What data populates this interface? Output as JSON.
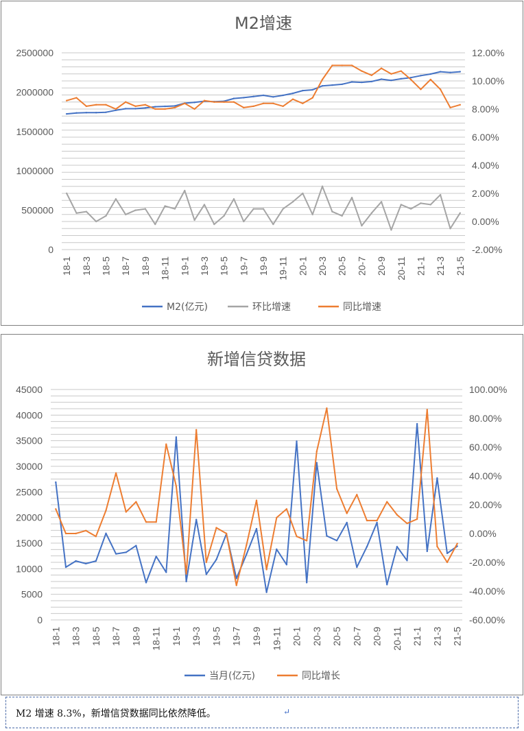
{
  "chart_data": [
    {
      "type": "line",
      "title": "M2增速",
      "categories": [
        "18-1",
        "18-2",
        "18-3",
        "18-4",
        "18-5",
        "18-6",
        "18-7",
        "18-8",
        "18-9",
        "18-10",
        "18-11",
        "18-12",
        "19-1",
        "19-2",
        "19-3",
        "19-4",
        "19-5",
        "19-6",
        "19-7",
        "19-8",
        "19-9",
        "19-10",
        "19-11",
        "19-12",
        "20-1",
        "20-2",
        "20-3",
        "20-4",
        "20-5",
        "20-6",
        "20-7",
        "20-8",
        "20-9",
        "20-10",
        "20-11",
        "20-12",
        "21-1",
        "21-2",
        "21-3",
        "21-4",
        "21-5"
      ],
      "x_tick_labels": [
        "18-1",
        "18-3",
        "18-5",
        "18-7",
        "18-9",
        "18-11",
        "19-1",
        "19-3",
        "19-5",
        "19-7",
        "19-9",
        "19-11",
        "20-1",
        "20-3",
        "20-5",
        "20-7",
        "20-9",
        "20-11",
        "21-1",
        "21-3",
        "21-5"
      ],
      "y_left": {
        "ylim": [
          0,
          2500000
        ],
        "ticks": [
          "0",
          "500000",
          "1000000",
          "1500000",
          "2000000",
          "2500000"
        ]
      },
      "y_right": {
        "ylim": [
          -2,
          12
        ],
        "ticks": [
          "-2.00%",
          "0.00%",
          "2.00%",
          "4.00%",
          "6.00%",
          "8.00%",
          "10.00%",
          "12.00%"
        ]
      },
      "grid": "horizontal",
      "legend_position": "bottom",
      "series": [
        {
          "name": "M2(亿元)",
          "axis": "left",
          "color": "#4472c4",
          "values": [
            1724000,
            1736000,
            1740000,
            1740000,
            1745000,
            1770000,
            1790000,
            1790000,
            1800000,
            1815000,
            1820000,
            1825000,
            1860000,
            1870000,
            1885000,
            1880000,
            1885000,
            1920000,
            1930000,
            1945000,
            1960000,
            1940000,
            1960000,
            1985000,
            2020000,
            2030000,
            2080000,
            2090000,
            2100000,
            2130000,
            2125000,
            2135000,
            2165000,
            2150000,
            2170000,
            2185000,
            2210000,
            2230000,
            2260000,
            2250000,
            2260000
          ]
        },
        {
          "name": "环比增速",
          "axis": "right",
          "color": "#a5a5a5",
          "values": [
            2.0,
            0.6,
            0.7,
            0.0,
            0.4,
            1.6,
            0.5,
            0.8,
            0.9,
            -0.2,
            1.1,
            0.9,
            2.2,
            0.1,
            1.2,
            -0.2,
            0.4,
            1.6,
            0.0,
            0.9,
            0.9,
            -0.2,
            0.9,
            1.4,
            2.0,
            0.5,
            2.5,
            0.7,
            0.4,
            1.7,
            -0.3,
            0.6,
            1.4,
            -0.6,
            1.2,
            0.9,
            1.3,
            1.2,
            1.9,
            -0.5,
            0.6
          ]
        },
        {
          "name": "同比增速",
          "axis": "right",
          "color": "#ed7d31",
          "values": [
            8.6,
            8.8,
            8.2,
            8.3,
            8.3,
            8.0,
            8.5,
            8.2,
            8.3,
            8.0,
            8.0,
            8.1,
            8.4,
            8.0,
            8.6,
            8.5,
            8.5,
            8.5,
            8.1,
            8.2,
            8.4,
            8.4,
            8.2,
            8.7,
            8.4,
            8.8,
            10.1,
            11.1,
            11.1,
            11.1,
            10.7,
            10.4,
            10.9,
            10.5,
            10.7,
            10.1,
            9.4,
            10.1,
            9.4,
            8.1,
            8.3
          ]
        }
      ]
    },
    {
      "type": "line",
      "title": "新增信贷数据",
      "categories": [
        "18-1",
        "18-2",
        "18-3",
        "18-4",
        "18-5",
        "18-6",
        "18-7",
        "18-8",
        "18-9",
        "18-10",
        "18-11",
        "18-12",
        "19-1",
        "19-2",
        "19-3",
        "19-4",
        "19-5",
        "19-6",
        "19-7",
        "19-8",
        "19-9",
        "19-10",
        "19-11",
        "19-12",
        "20-1",
        "20-2",
        "20-3",
        "20-4",
        "20-5",
        "20-6",
        "20-7",
        "20-8",
        "20-9",
        "20-10",
        "20-11",
        "20-12",
        "21-1",
        "21-2",
        "21-3",
        "21-4",
        "21-5"
      ],
      "x_tick_labels": [
        "18-1",
        "18-3",
        "18-5",
        "18-7",
        "18-9",
        "18-11",
        "19-1",
        "19-3",
        "19-5",
        "19-7",
        "19-9",
        "19-11",
        "20-1",
        "20-3",
        "20-5",
        "20-7",
        "20-9",
        "20-11",
        "21-1",
        "21-3",
        "21-5"
      ],
      "y_left": {
        "ylim": [
          0,
          45000
        ],
        "ticks": [
          "0",
          "5000",
          "10000",
          "15000",
          "20000",
          "25000",
          "30000",
          "35000",
          "40000",
          "45000"
        ]
      },
      "y_right": {
        "ylim": [
          -60,
          100
        ],
        "ticks": [
          "-60.00%",
          "-40.00%",
          "-20.00%",
          "0.00%",
          "20.00%",
          "40.00%",
          "60.00%",
          "80.00%",
          "100.00%"
        ]
      },
      "grid": "horizontal",
      "legend_position": "bottom",
      "series": [
        {
          "name": "当月(亿元)",
          "axis": "left",
          "color": "#4472c4",
          "values": [
            26900,
            10300,
            11500,
            11000,
            11500,
            16900,
            12900,
            13200,
            14500,
            7300,
            12400,
            9300,
            35700,
            7500,
            19600,
            8900,
            11800,
            16800,
            8100,
            12800,
            17800,
            5400,
            13800,
            10800,
            34900,
            7300,
            30700,
            16400,
            15500,
            19000,
            10300,
            14300,
            19000,
            6900,
            14300,
            11600,
            38300,
            13400,
            27700,
            13000,
            14400
          ]
        },
        {
          "name": "同比增长",
          "axis": "right",
          "color": "#ed7d31",
          "values": [
            17,
            0,
            0,
            2,
            -2,
            16,
            42,
            15,
            22,
            8,
            8,
            62,
            33,
            -28,
            72,
            -20,
            4,
            0,
            -36,
            -8,
            23,
            -25,
            11,
            17,
            -2,
            -5,
            57,
            87,
            31,
            14,
            27,
            9,
            9,
            22,
            13,
            7,
            10,
            86,
            -9,
            -20,
            -7
          ]
        }
      ]
    }
  ],
  "caption": {
    "text": "M2 增速 8.3%，新增信贷数据同比依然降低。"
  }
}
